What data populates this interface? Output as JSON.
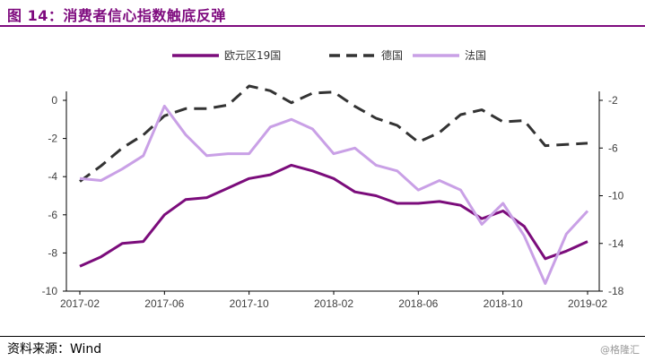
{
  "header": {
    "title": "图 14：消费者信心指数触底反弹"
  },
  "footer": {
    "source": "资料来源：Wind",
    "watermark": "@格隆汇"
  },
  "colors": {
    "accent": "#7e0a7e",
    "series_eurozone": "#7b0c7b",
    "series_germany": "#333333",
    "series_france": "#c9a0e6"
  },
  "chart_data": {
    "type": "line",
    "x": [
      "2017-02",
      "2017-03",
      "2017-04",
      "2017-05",
      "2017-06",
      "2017-07",
      "2017-08",
      "2017-09",
      "2017-10",
      "2017-11",
      "2017-12",
      "2018-01",
      "2018-02",
      "2018-03",
      "2018-04",
      "2018-05",
      "2018-06",
      "2018-07",
      "2018-08",
      "2018-09",
      "2018-10",
      "2018-11",
      "2018-12",
      "2019-01",
      "2019-02"
    ],
    "x_tick_labels": [
      "2017-02",
      "2017-06",
      "2017-10",
      "2018-02",
      "2018-06",
      "2018-10",
      "2019-02"
    ],
    "y_left": {
      "lim": [
        -10,
        0
      ],
      "ticks": [
        0,
        -2,
        -4,
        -6,
        -8,
        -10
      ]
    },
    "y_right": {
      "lim": [
        -18,
        -2
      ],
      "ticks": [
        -2,
        -6,
        -10,
        -14,
        -18
      ]
    },
    "legend_position": "top",
    "series": [
      {
        "name": "欧元区19国",
        "axis": "left",
        "style": "solid",
        "color": "#7b0c7b",
        "values": [
          -8.7,
          -8.2,
          -7.5,
          -7.4,
          -6.0,
          -5.2,
          -5.1,
          -4.6,
          -4.1,
          -3.9,
          -3.4,
          -3.7,
          -4.1,
          -4.8,
          -5.0,
          -5.4,
          -5.4,
          -5.3,
          -5.5,
          -6.2,
          -5.8,
          -6.6,
          -8.3,
          -7.9,
          -7.4
        ]
      },
      {
        "name": "德国",
        "axis": "right",
        "style": "dashed",
        "color": "#333333",
        "values": [
          -8.8,
          -7.5,
          -6.0,
          -4.9,
          -3.3,
          -2.7,
          -2.7,
          -2.4,
          -0.8,
          -1.2,
          -2.2,
          -1.4,
          -1.3,
          -2.5,
          -3.5,
          -4.1,
          -5.5,
          -4.7,
          -3.2,
          -2.8,
          -3.8,
          -3.7,
          -5.8,
          -5.7,
          -5.6
        ]
      },
      {
        "name": "法国",
        "axis": "left",
        "style": "solid",
        "color": "#c9a0e6",
        "values": [
          -4.1,
          -4.2,
          -3.6,
          -2.9,
          -0.3,
          -1.8,
          -2.9,
          -2.8,
          -2.8,
          -1.4,
          -1.0,
          -1.5,
          -2.8,
          -2.5,
          -3.4,
          -3.7,
          -4.7,
          -4.2,
          -4.7,
          -6.5,
          -5.4,
          -7.1,
          -9.6,
          -7.0,
          -5.8
        ]
      }
    ]
  }
}
